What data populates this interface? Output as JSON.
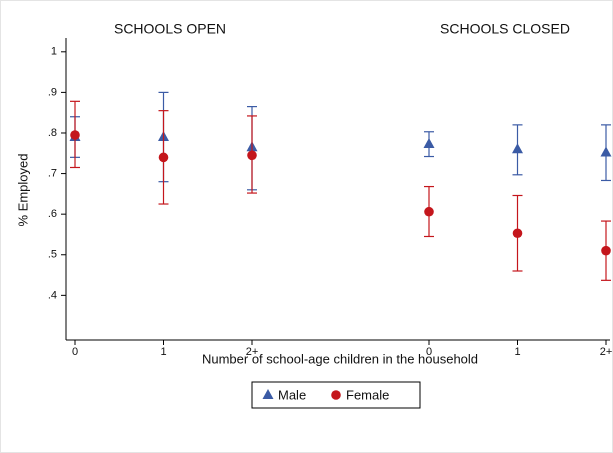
{
  "chart_data": {
    "type": "errorbar",
    "annotations": [
      "SCHOOLS OPEN",
      "SCHOOLS CLOSED"
    ],
    "x_label": "Number of school-age children in the household",
    "y_label": "% Employed",
    "categories": [
      "0",
      "1",
      "2+",
      "0",
      "1",
      "2+"
    ],
    "series": [
      {
        "name": "Male",
        "color": "#3b5ba5",
        "marker": "triangle",
        "values": [
          0.79,
          0.79,
          0.765,
          0.773,
          0.76,
          0.752
        ],
        "ci_low": [
          0.74,
          0.68,
          0.66,
          0.742,
          0.697,
          0.683
        ],
        "ci_high": [
          0.84,
          0.9,
          0.865,
          0.803,
          0.82,
          0.82
        ]
      },
      {
        "name": "Female",
        "color": "#c4161c",
        "marker": "circle",
        "values": [
          0.795,
          0.74,
          0.745,
          0.606,
          0.553,
          0.51
        ],
        "ci_low": [
          0.715,
          0.625,
          0.652,
          0.545,
          0.46,
          0.437
        ],
        "ci_high": [
          0.878,
          0.855,
          0.842,
          0.668,
          0.646,
          0.583
        ]
      }
    ],
    "ylim": [
      0.29,
      1.034
    ],
    "yticks": [
      {
        "value": 0.4,
        "label": ".4"
      },
      {
        "value": 0.5,
        "label": ".5"
      },
      {
        "value": 0.6,
        "label": ".6"
      },
      {
        "value": 0.7,
        "label": ".7"
      },
      {
        "value": 0.8,
        "label": ".8"
      },
      {
        "value": 0.9,
        "label": ".9"
      },
      1
    ],
    "legend": "bottom"
  }
}
